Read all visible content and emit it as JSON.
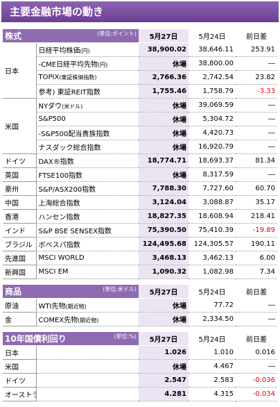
{
  "header": {
    "title": "主要金融市場の動き"
  },
  "sections": [
    {
      "label": "株式",
      "unit": "(単位:ポイント)",
      "columns": [
        "5月27日",
        "5月24日",
        "前日差"
      ],
      "groups": [
        {
          "region": "日本",
          "rows": [
            {
              "name": "日経平均株価",
              "note": "(円)",
              "values": [
                "38,900.02",
                "38,646.11",
                "253.91"
              ]
            },
            {
              "name": "-CME日経平均先物",
              "note": "(円)",
              "values": [
                "休場",
                "38,800.00",
                "―"
              ]
            },
            {
              "name": "TOPIX",
              "note": "(東証株価指数)",
              "values": [
                "2,766.36",
                "2,742.54",
                "23.82"
              ]
            },
            {
              "name": "参考) 東証REIT指数",
              "values": [
                "1,755.46",
                "1,758.79",
                "-3.33"
              ]
            }
          ]
        },
        {
          "region": "米国",
          "rows": [
            {
              "name": "NYダウ",
              "note": "(米ドル)",
              "values": [
                "休場",
                "39,069.59",
                "―"
              ]
            },
            {
              "name": "S&P500",
              "values": [
                "休場",
                "5,304.72",
                "―"
              ]
            },
            {
              "name": "-S&P500配当貴族指数",
              "values": [
                "休場",
                "4,420.73",
                "―"
              ]
            },
            {
              "name": "ナスダック総合指数",
              "values": [
                "休場",
                "16,920.79",
                "―"
              ]
            }
          ]
        },
        {
          "region": "ドイツ",
          "rows": [
            {
              "name": "DAX®指数",
              "values": [
                "18,774.71",
                "18,693.37",
                "81.34"
              ]
            }
          ]
        },
        {
          "region": "英国",
          "rows": [
            {
              "name": "FTSE100指数",
              "values": [
                "休場",
                "8,317.59",
                "―"
              ]
            }
          ]
        },
        {
          "region": "豪州",
          "rows": [
            {
              "name": "S&P/ASX200指数",
              "values": [
                "7,788.30",
                "7,727.60",
                "60.70"
              ]
            }
          ]
        },
        {
          "region": "中国",
          "rows": [
            {
              "name": "上海総合指数",
              "values": [
                "3,124.04",
                "3,088.87",
                "35.17"
              ]
            }
          ]
        },
        {
          "region": "香港",
          "rows": [
            {
              "name": "ハンセン指数",
              "values": [
                "18,827.35",
                "18,608.94",
                "218.41"
              ]
            }
          ]
        },
        {
          "region": "インド",
          "rows": [
            {
              "name": "S&P BSE SENSEX指数",
              "values": [
                "75,390.50",
                "75,410.39",
                "-19.89"
              ]
            }
          ]
        },
        {
          "region": "ブラジル",
          "rows": [
            {
              "name": "ボベスパ指数",
              "values": [
                "124,495.68",
                "124,305.57",
                "190.11"
              ]
            }
          ]
        },
        {
          "region": "先進国",
          "rows": [
            {
              "name": "MSCI WORLD",
              "values": [
                "3,468.13",
                "3,462.13",
                "6.00"
              ]
            }
          ]
        },
        {
          "region": "新興国",
          "rows": [
            {
              "name": "MSCI EM",
              "values": [
                "1,090.32",
                "1,082.98",
                "7.34"
              ]
            }
          ]
        }
      ]
    },
    {
      "label": "商品",
      "unit": "(単位:米ドル)",
      "columns": [
        "5月27日",
        "5月24日",
        "前日差"
      ],
      "groups": [
        {
          "region": "原油",
          "rows": [
            {
              "name": "WTI先物",
              "note": "(期近物)",
              "values": [
                "休場",
                "77.72",
                "―"
              ]
            }
          ]
        },
        {
          "region": "金",
          "rows": [
            {
              "name": "COMEX先物",
              "note": "(期近物)",
              "values": [
                "休場",
                "2,334.50",
                "―"
              ]
            }
          ]
        }
      ]
    },
    {
      "label": "10年国債利回り",
      "unit": "(単位:%)",
      "columns": [
        "5月27日",
        "5月24日",
        "前日差"
      ],
      "groups": [
        {
          "region": "日本",
          "rows": [
            {
              "values": [
                "1.026",
                "1.010",
                "0.016"
              ]
            }
          ]
        },
        {
          "region": "米国",
          "rows": [
            {
              "values": [
                "休場",
                "4.467",
                "―"
              ]
            }
          ]
        },
        {
          "region": "ドイツ",
          "rows": [
            {
              "values": [
                "2.547",
                "2.583",
                "-0.036"
              ]
            }
          ]
        },
        {
          "region": "オーストラリア",
          "rows": [
            {
              "values": [
                "4.281",
                "4.315",
                "-0.034"
              ]
            }
          ]
        }
      ]
    }
  ]
}
